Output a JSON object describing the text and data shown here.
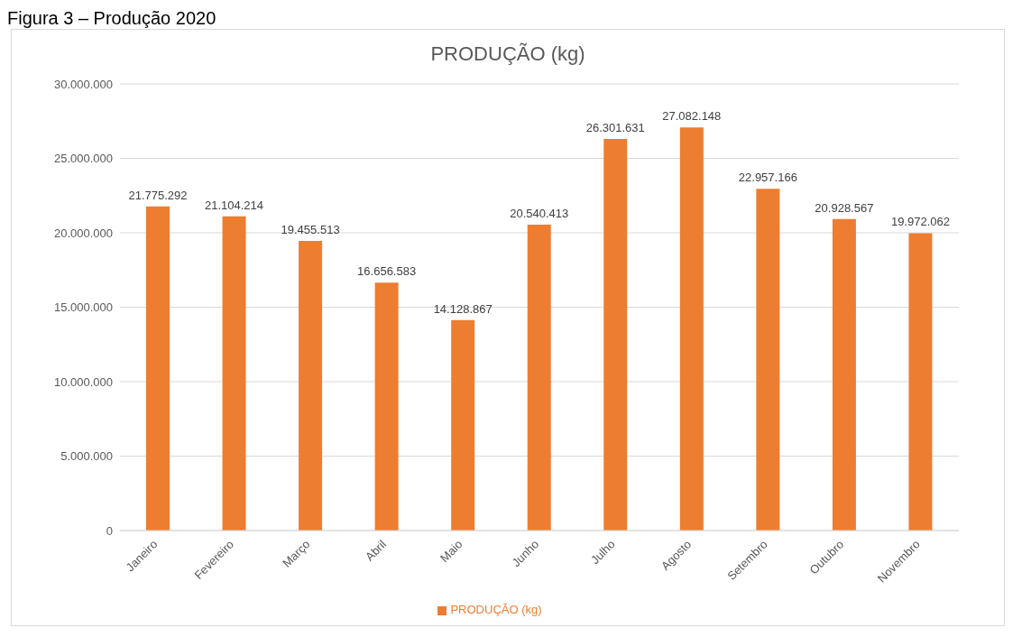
{
  "chart_data": {
    "type": "bar",
    "title": "PRODUÇÃO (kg)",
    "annotations": [
      "Figura 3 – Produção 2020"
    ],
    "categories": [
      "Janeiro",
      "Fevereiro",
      "Março",
      "Abril",
      "Maio",
      "Junho",
      "Julho",
      "Agosto",
      "Setembro",
      "Outubro",
      "Novembro"
    ],
    "series": [
      {
        "name": "PRODUÇÃO (kg)",
        "color": "#ed7d31",
        "values": [
          21775292,
          21104214,
          19455513,
          16656583,
          14128867,
          20540413,
          26301631,
          27082148,
          22957166,
          20928567,
          19972062
        ],
        "value_labels": [
          "21.775.292",
          "21.104.214",
          "19.455.513",
          "16.656.583",
          "14.128.867",
          "20.540.413",
          "26.301.631",
          "27.082.148",
          "22.957.166",
          "20.928.567",
          "19.972.062"
        ]
      }
    ],
    "ylim": [
      0,
      30000000
    ],
    "yticks": [
      {
        "value": 0,
        "label": "0"
      },
      {
        "value": 5000000,
        "label": "5.000.000"
      },
      {
        "value": 10000000,
        "label": "10.000.000"
      },
      {
        "value": 15000000,
        "label": "15.000.000"
      },
      {
        "value": 20000000,
        "label": "20.000.000"
      },
      {
        "value": 25000000,
        "label": "25.000.000"
      },
      {
        "value": 30000000,
        "label": "30.000.000"
      }
    ],
    "grid": "y",
    "legend": "bottom"
  }
}
